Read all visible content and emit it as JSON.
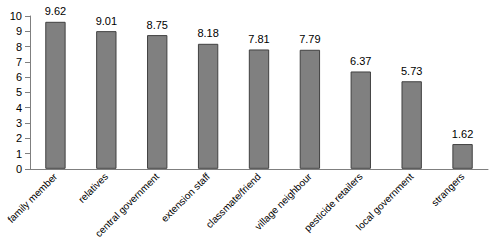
{
  "chart_data": {
    "type": "bar",
    "categories": [
      "family member",
      "relatives",
      "central government",
      "extension staff",
      "classmate/friend",
      "village neighbour",
      "pesticide retailers",
      "local government",
      "strangers"
    ],
    "values": [
      9.62,
      9.01,
      8.75,
      8.18,
      7.81,
      7.79,
      6.37,
      5.73,
      1.62
    ],
    "color": "#808080",
    "ylim": [
      0,
      10
    ],
    "yticks": [
      0,
      1,
      2,
      3,
      4,
      5,
      6,
      7,
      8,
      9,
      10
    ],
    "grid": false,
    "data_labels": true
  }
}
